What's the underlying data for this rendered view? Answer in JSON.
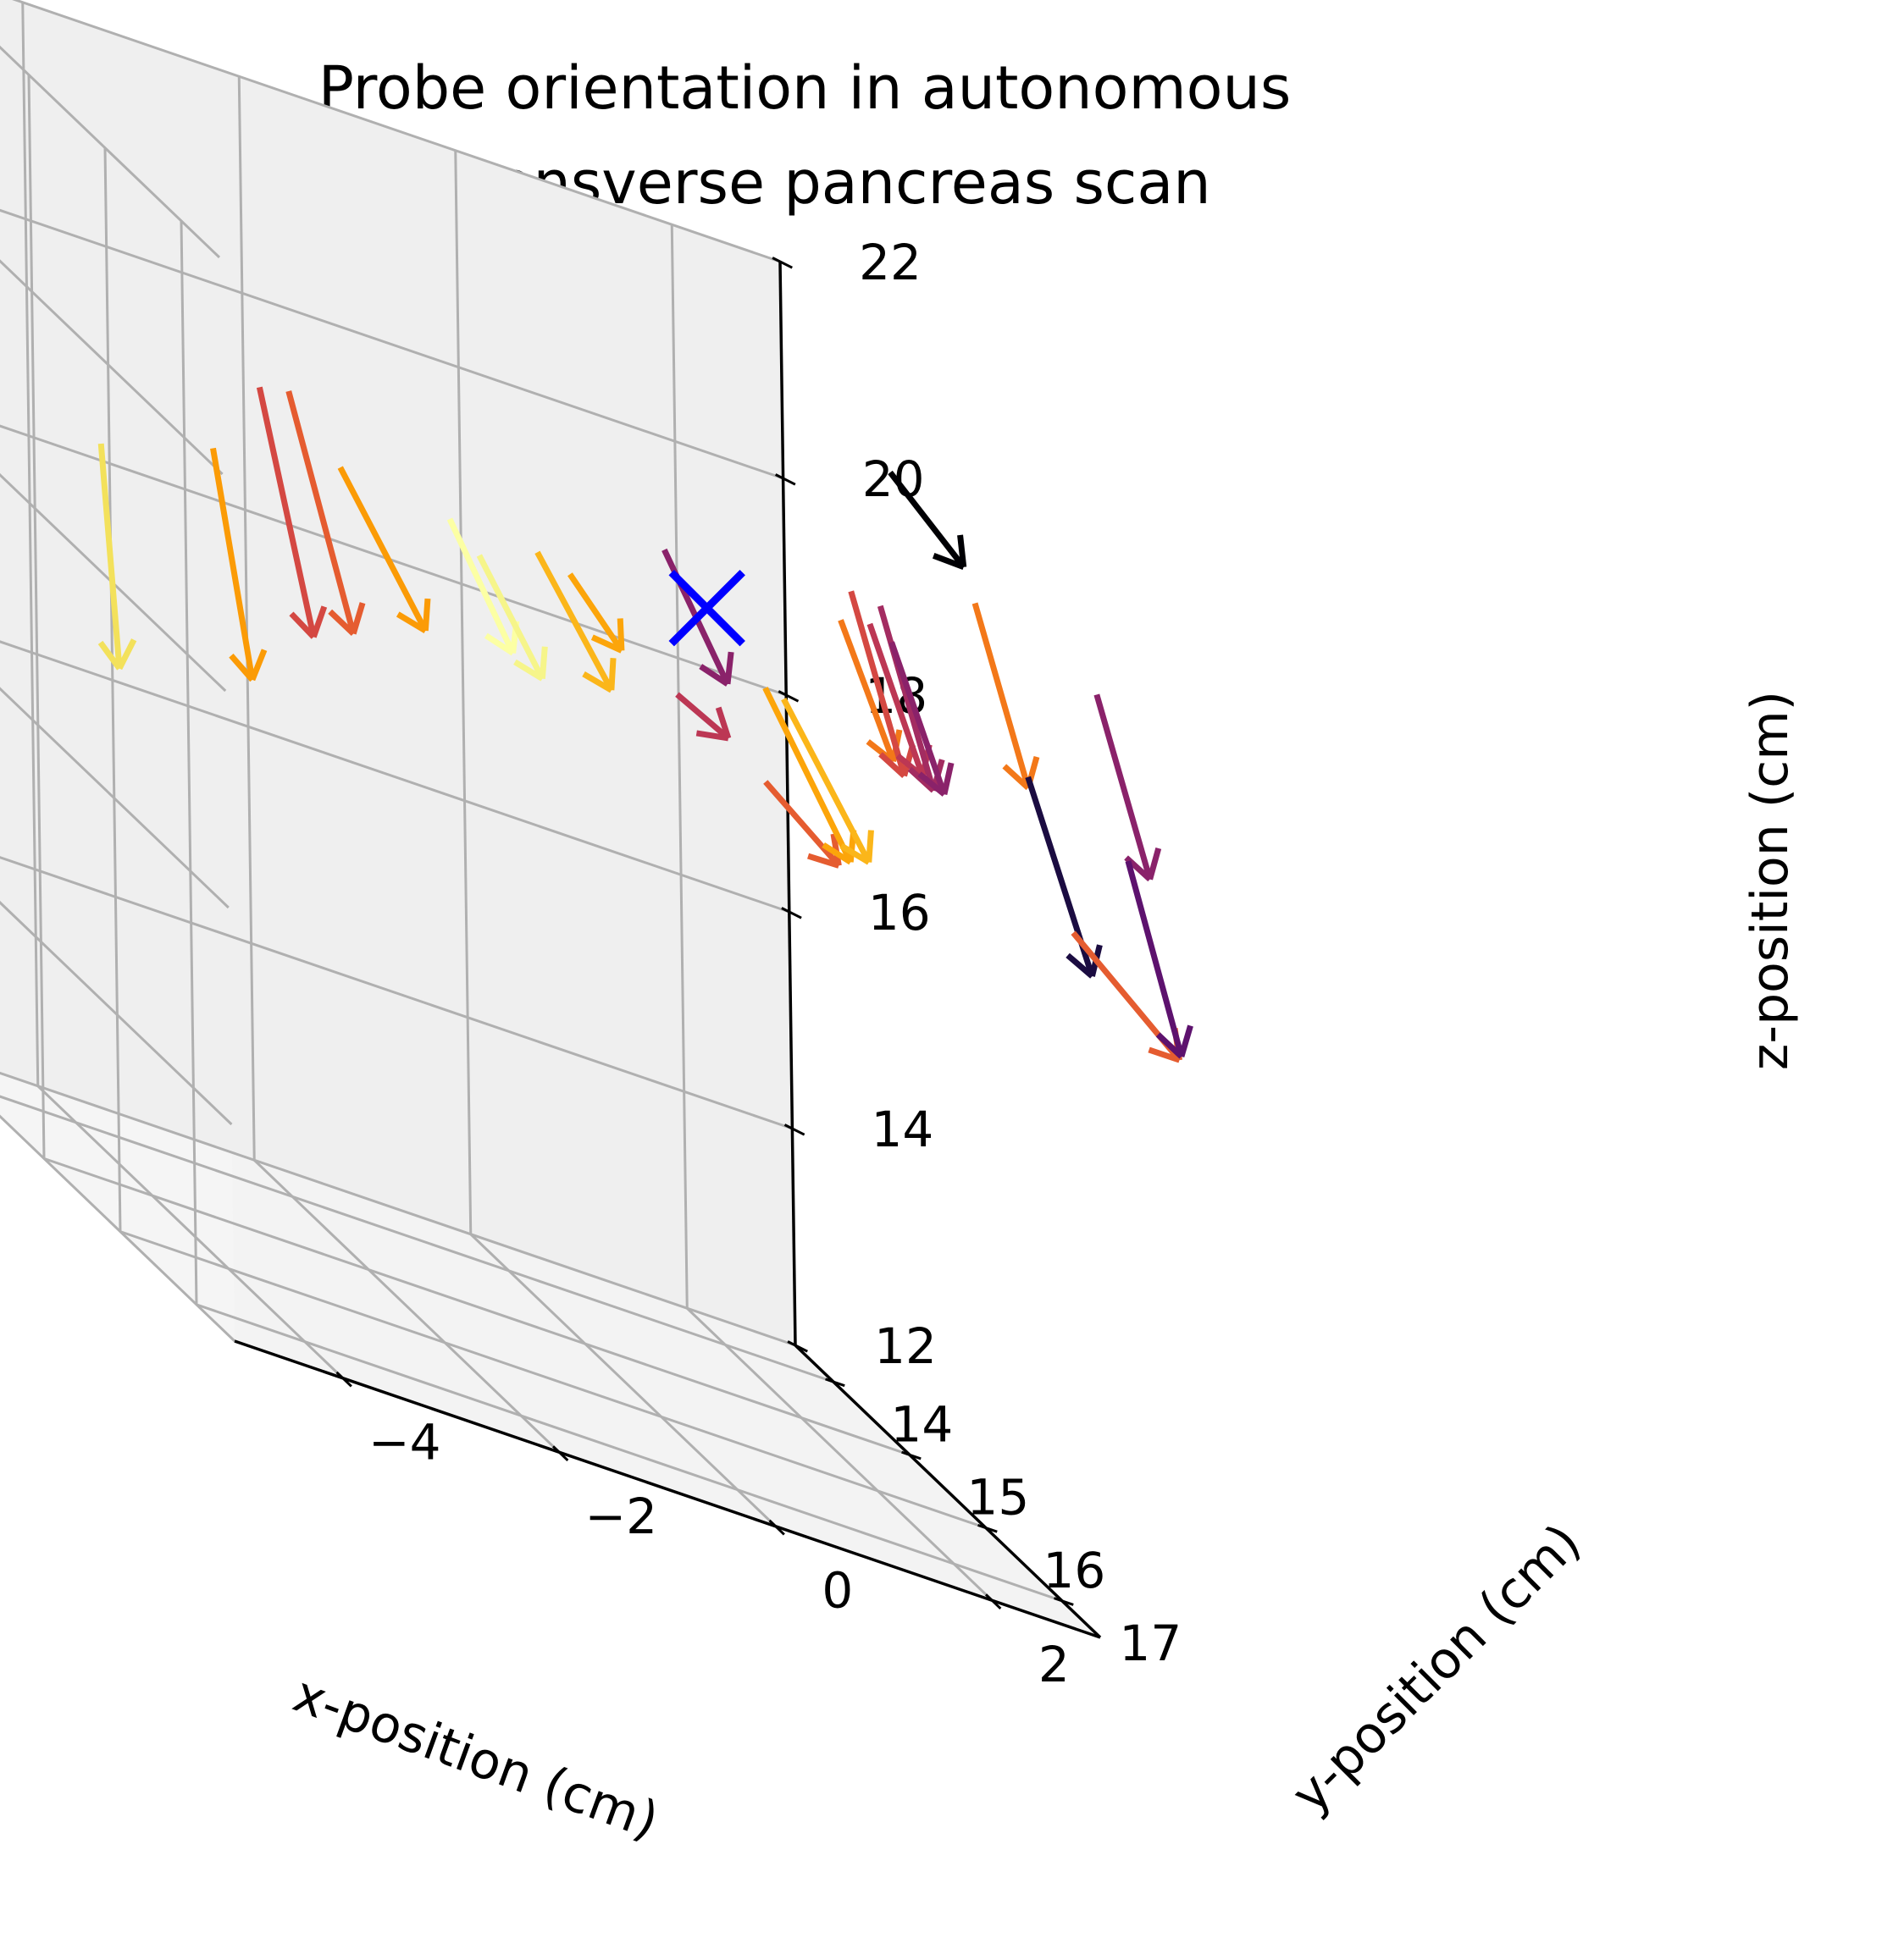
{
  "chart_data": {
    "type": "quiver3d",
    "title_lines": [
      "Probe orientation in autonomous",
      "transverse pancreas scan"
    ],
    "xlabel": "x-position (cm)",
    "ylabel": "y-position (cm)",
    "zlabel": "z-position (cm)",
    "x_ticks": [
      "−4",
      "−2",
      "0",
      "2"
    ],
    "y_ticks": [
      "14",
      "15",
      "16",
      "17"
    ],
    "z_ticks": [
      "12",
      "14",
      "16",
      "18",
      "20",
      "22"
    ],
    "xlim": [
      -5,
      3
    ],
    "ylim": [
      13.5,
      17.5
    ],
    "zlim": [
      12,
      22
    ],
    "grid": true,
    "colormap": "inferno",
    "colors": {
      "pane_left": "#f5f5f5",
      "pane_back": "#efefef",
      "pane_floor": "#f3f3f3",
      "grid": "#b0b0b0",
      "axis": "#000000",
      "target_marker": "#0000ff"
    },
    "target_marker": {
      "symbol": "x",
      "x": 0.6,
      "y": 15.9,
      "z": 19.6
    },
    "arrows": [
      {
        "x": -3.4,
        "y": 13.6,
        "z": 18.2,
        "dx": 0.1,
        "dy": 0.06,
        "dz": -2.0,
        "color": "#f3e15b"
      },
      {
        "x": -2.5,
        "y": 13.8,
        "z": 18.6,
        "dx": 0.3,
        "dy": 0.05,
        "dz": -2.0,
        "color": "#fb9b06"
      },
      {
        "x": -2.2,
        "y": 14.0,
        "z": 19.4,
        "dx": 0.4,
        "dy": 0.1,
        "dz": -2.1,
        "color": "#d44842"
      },
      {
        "x": -2.0,
        "y": 14.1,
        "z": 19.5,
        "dx": 0.5,
        "dy": 0.1,
        "dz": -2.0,
        "color": "#e55c30"
      },
      {
        "x": -1.6,
        "y": 14.2,
        "z": 19.0,
        "dx": 0.7,
        "dy": 0.1,
        "dz": -1.2,
        "color": "#fb9b06"
      },
      {
        "x": -0.8,
        "y": 14.5,
        "z": 19.0,
        "dx": 0.5,
        "dy": 0.1,
        "dz": -1.0,
        "color": "#fcffa4"
      },
      {
        "x": -0.6,
        "y": 14.6,
        "z": 18.8,
        "dx": 0.5,
        "dy": 0.1,
        "dz": -0.9,
        "color": "#f6f58a"
      },
      {
        "x": -0.2,
        "y": 14.8,
        "z": 19.1,
        "dx": 0.6,
        "dy": 0.1,
        "dz": -1.0,
        "color": "#fbb61a"
      },
      {
        "x": 0.1,
        "y": 14.8,
        "z": 19.0,
        "dx": 0.4,
        "dy": 0.1,
        "dz": -0.5,
        "color": "#fca50a"
      },
      {
        "x": 0.7,
        "y": 15.2,
        "z": 19.7,
        "dx": 0.5,
        "dy": 0.1,
        "dz": -1.0,
        "color": "#8a226a"
      },
      {
        "x": 0.8,
        "y": 15.2,
        "z": 18.4,
        "dx": 0.4,
        "dy": 0.1,
        "dz": -0.2,
        "color": "#bc3754"
      },
      {
        "x": 1.4,
        "y": 15.5,
        "z": 18.0,
        "dx": 0.6,
        "dy": 0.1,
        "dz": -0.5,
        "color": "#e55c30"
      },
      {
        "x": 1.2,
        "y": 15.8,
        "z": 19.0,
        "dx": 0.7,
        "dy": 0.1,
        "dz": -1.3,
        "color": "#fca50a"
      },
      {
        "x": 1.3,
        "y": 15.9,
        "z": 19.0,
        "dx": 0.7,
        "dy": 0.1,
        "dz": -1.2,
        "color": "#fbb61a"
      },
      {
        "x": 1.7,
        "y": 16.1,
        "z": 20.0,
        "dx": 0.4,
        "dy": 0.1,
        "dz": -1.1,
        "color": "#f37819"
      },
      {
        "x": 1.8,
        "y": 16.1,
        "z": 20.3,
        "dx": 0.4,
        "dy": 0.1,
        "dz": -1.5,
        "color": "#d44842"
      },
      {
        "x": 1.9,
        "y": 16.2,
        "z": 20.1,
        "dx": 0.4,
        "dy": 0.1,
        "dz": -1.2,
        "color": "#bc3754"
      },
      {
        "x": 2.0,
        "y": 16.2,
        "z": 20.3,
        "dx": 0.4,
        "dy": 0.1,
        "dz": -1.5,
        "color": "#a32c61"
      },
      {
        "x": 2.1,
        "y": 16.2,
        "z": 20.0,
        "dx": 0.4,
        "dy": 0.1,
        "dz": -1.2,
        "color": "#8a226a"
      },
      {
        "x": 1.9,
        "y": 16.5,
        "z": 21.7,
        "dx": 0.6,
        "dy": 0.1,
        "dz": -0.6,
        "color": "#000004"
      },
      {
        "x": 2.6,
        "y": 16.6,
        "z": 20.8,
        "dx": 0.4,
        "dy": 0.1,
        "dz": -1.5,
        "color": "#f37819"
      },
      {
        "x": 3.0,
        "y": 16.7,
        "z": 19.4,
        "dx": 0.5,
        "dy": 0.1,
        "dz": -1.6,
        "color": "#1b0c41"
      },
      {
        "x": 3.4,
        "y": 16.7,
        "z": 18.1,
        "dx": 0.9,
        "dy": 0.1,
        "dz": -0.8,
        "color": "#e55c30"
      },
      {
        "x": 3.3,
        "y": 17.2,
        "z": 20.6,
        "dx": 0.4,
        "dy": 0.1,
        "dz": -1.5,
        "color": "#8a226a"
      },
      {
        "x": 3.5,
        "y": 17.3,
        "z": 19.2,
        "dx": 0.4,
        "dy": 0.1,
        "dz": -1.6,
        "color": "#5d126e"
      }
    ]
  }
}
